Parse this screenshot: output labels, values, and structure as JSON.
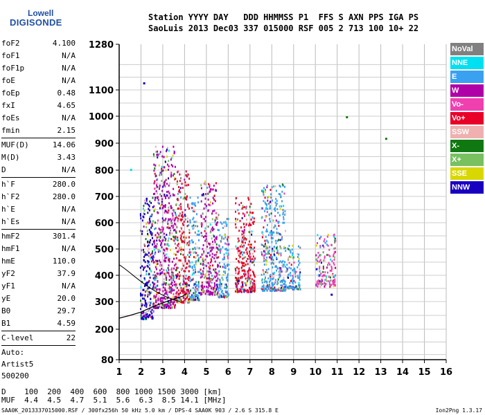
{
  "logo": {
    "line1": "Lowell",
    "line2": "DIGISONDE"
  },
  "header": {
    "line1": "Station YYYY DAY   DDD HHMMSS P1  FFS S AXN PPS IGA PS",
    "line2": "SaoLuis 2013 Dec03 337 015000 RSF 005 2 713 100 10+ 22"
  },
  "params": [
    [
      [
        "foF2",
        "4.100"
      ],
      [
        "foF1",
        "N/A"
      ],
      [
        "foF1p",
        "N/A"
      ],
      [
        "foE",
        "N/A"
      ],
      [
        "foEp",
        "0.48"
      ],
      [
        "fxI",
        "4.65"
      ],
      [
        "foEs",
        "N/A"
      ],
      [
        "fmin",
        "2.15"
      ]
    ],
    [
      [
        "MUF(D)",
        "14.06"
      ],
      [
        "M(D)",
        "3.43"
      ],
      [
        "D",
        "N/A"
      ]
    ],
    [
      [
        "h`F",
        "280.0"
      ],
      [
        "h`F2",
        "280.0"
      ],
      [
        "h`E",
        "N/A"
      ],
      [
        "h`Es",
        "N/A"
      ]
    ],
    [
      [
        "hmF2",
        "301.4"
      ],
      [
        "hmF1",
        "N/A"
      ],
      [
        "hmE",
        "110.0"
      ],
      [
        "yF2",
        "37.9"
      ],
      [
        "yF1",
        "N/A"
      ],
      [
        "yE",
        "20.0"
      ],
      [
        "B0",
        "29.7"
      ],
      [
        "B1",
        "4.59"
      ]
    ],
    [
      [
        "C-level",
        "22"
      ]
    ]
  ],
  "auto": [
    "Auto:",
    "Artist5",
    "500200"
  ],
  "legend": [
    {
      "label": "NoVal",
      "color": "#808080"
    },
    {
      "label": "NNE",
      "color": "#00e0f0"
    },
    {
      "label": "E",
      "color": "#3aa0f0"
    },
    {
      "label": "W",
      "color": "#b000a8"
    },
    {
      "label": "Vo-",
      "color": "#f040b0"
    },
    {
      "label": "Vo+",
      "color": "#e80028"
    },
    {
      "label": "SSW",
      "color": "#f0b0b0"
    },
    {
      "label": "X-",
      "color": "#107810"
    },
    {
      "label": "X+",
      "color": "#78c060"
    },
    {
      "label": "SSE",
      "color": "#d8d800"
    },
    {
      "label": "NNW",
      "color": "#1800c0"
    }
  ],
  "footer": {
    "d_line": "D    100  200  400  600  800 1000 1500 3000 [km]",
    "muf_line": "MUF  4.4  4.5  4.7  5.1  5.6  6.3  8.5 14.1 [MHz]",
    "source": "SAA0K_2013337015000.RSF / 300fx256h 50 kHz 5.0 km / DPS-4 SAA0K 903 / 2.6 S 315.8 E",
    "version": "Ion2Png 1.3.17"
  },
  "chart_data": {
    "type": "scatter",
    "x_ticks": [
      1,
      2,
      3,
      4,
      5,
      6,
      7,
      8,
      9,
      10,
      11,
      12,
      13,
      14,
      15,
      16
    ],
    "y_ticks": [
      80,
      200,
      300,
      400,
      500,
      600,
      700,
      800,
      900,
      1000,
      1100,
      1280
    ],
    "xlim": [
      1,
      16
    ],
    "ylim": [
      80,
      1280
    ],
    "grid": true,
    "echo_bands": [
      {
        "x": [
          1.95,
          2.55
        ],
        "y": [
          240,
          700
        ],
        "color": "#1800c0"
      },
      {
        "x": [
          2.55,
          3.55
        ],
        "y": [
          280,
          900
        ],
        "color": "#b000a8"
      },
      {
        "x": [
          3.55,
          4.2
        ],
        "y": [
          300,
          800
        ],
        "color": "#e80028"
      },
      {
        "x": [
          4.2,
          4.65
        ],
        "y": [
          310,
          700
        ],
        "color": "#3aa0f0"
      },
      {
        "x": [
          4.7,
          5.5
        ],
        "y": [
          330,
          760
        ],
        "color": "#b000a8"
      },
      {
        "x": [
          5.5,
          6.0
        ],
        "y": [
          320,
          640
        ],
        "color": "#3aa0f0"
      },
      {
        "x": [
          6.3,
          7.2
        ],
        "y": [
          340,
          700
        ],
        "color": "#e80028"
      },
      {
        "x": [
          7.5,
          8.6
        ],
        "y": [
          345,
          750
        ],
        "color": "#3aa0f0"
      },
      {
        "x": [
          8.6,
          9.3
        ],
        "y": [
          350,
          520
        ],
        "color": "#3aa0f0"
      },
      {
        "x": [
          10.0,
          10.9
        ],
        "y": [
          360,
          560
        ],
        "color": "#f040b0"
      }
    ],
    "trace_curve": {
      "x": [
        1.0,
        1.5,
        2.0,
        2.5,
        3.0,
        3.5,
        3.9,
        4.1
      ],
      "y": [
        240,
        250,
        262,
        280,
        295,
        310,
        320,
        330
      ]
    }
  }
}
